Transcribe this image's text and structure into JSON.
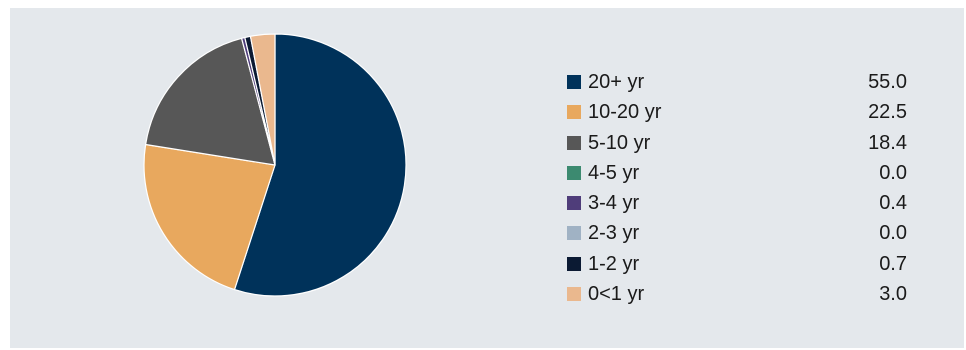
{
  "chart_data": {
    "type": "pie",
    "title": "",
    "categories": [
      "20+ yr",
      "10-20 yr",
      "5-10 yr",
      "4-5 yr",
      "3-4 yr",
      "2-3 yr",
      "1-2 yr",
      "0<1 yr"
    ],
    "values": [
      55.0,
      22.5,
      18.4,
      0.0,
      0.4,
      0.0,
      0.7,
      3.0
    ],
    "value_labels": [
      "55.0",
      "22.5",
      "18.4",
      "0.0",
      "0.4",
      "0.0",
      "0.7",
      "3.0"
    ],
    "colors": [
      "#00325a",
      "#e8a85e",
      "#575757",
      "#3c8a70",
      "#4f3d7a",
      "#a0b2c4",
      "#0b1a33",
      "#eab88e"
    ],
    "start_angle": "12 o'clock",
    "direction": "clockwise",
    "legend_position": "right",
    "background": "#e4e8ec",
    "slice_border": "#ffffff"
  }
}
